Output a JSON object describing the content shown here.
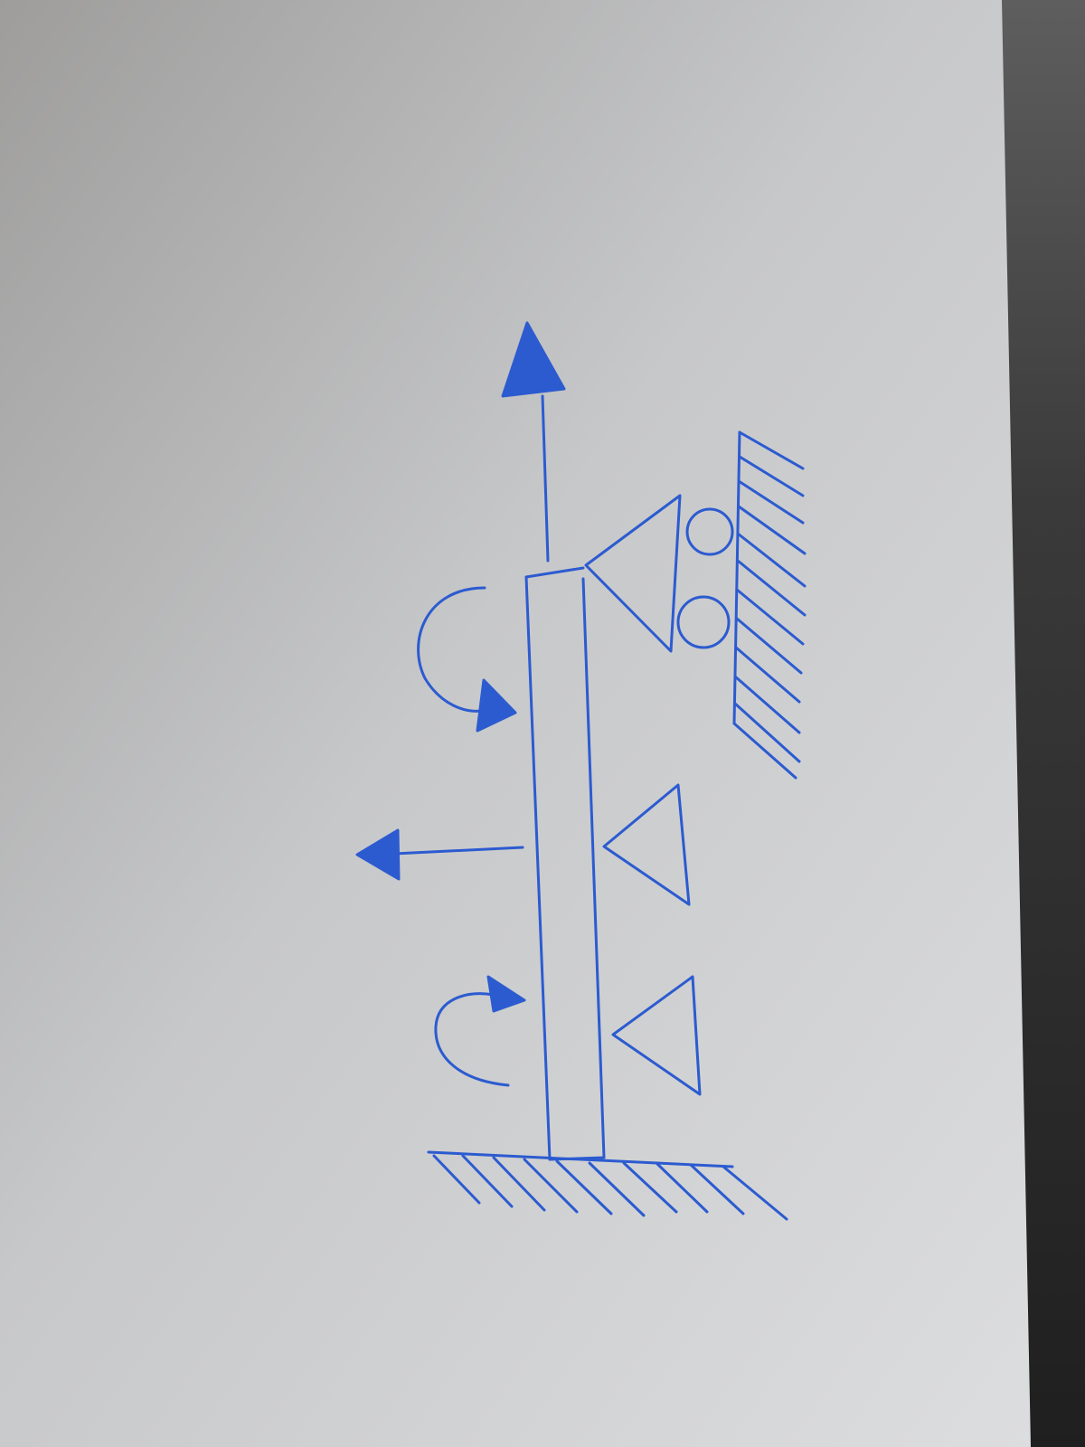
{
  "colors": {
    "ink": "#2c5bd0",
    "paper": "#d6d7d9",
    "paper_shadow": "#9d9c9b",
    "background": "#2a2a2a"
  },
  "diagram": {
    "elements": [
      "upward-force-arrow",
      "vertical-beam",
      "roller-support",
      "wall-hatching",
      "clockwise-moment-arrow-top",
      "leftward-force-arrow",
      "pin-support-middle",
      "pin-support-lower",
      "clockwise-moment-arrow-bottom",
      "ground-hatching"
    ]
  }
}
